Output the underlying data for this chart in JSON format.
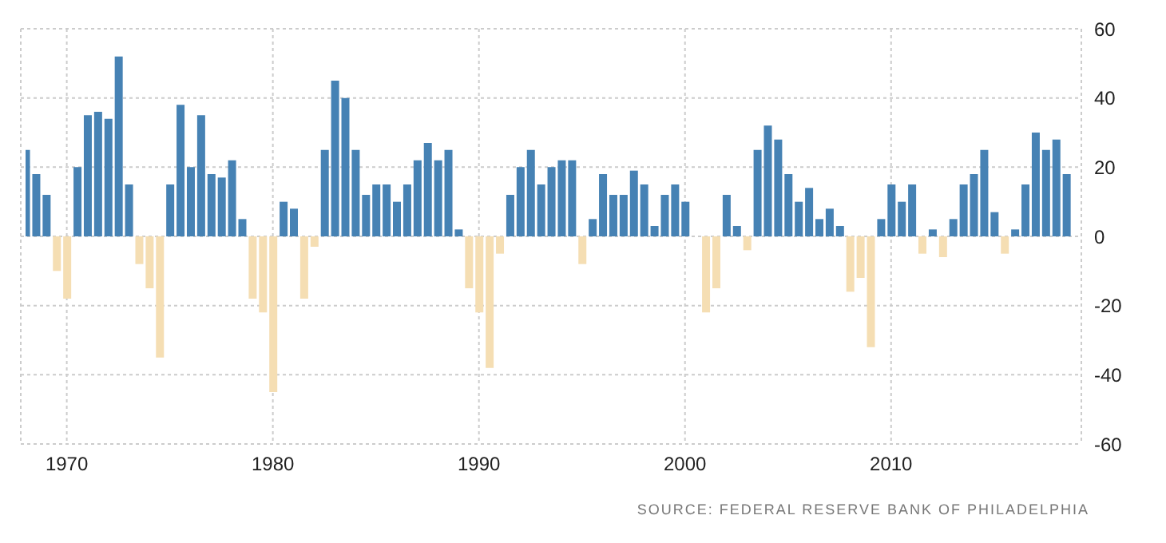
{
  "chart_data": {
    "type": "bar",
    "x": [
      1968,
      1968.5,
      1969,
      1969.5,
      1970,
      1970.5,
      1971,
      1971.5,
      1972,
      1972.5,
      1973,
      1973.5,
      1974,
      1974.5,
      1975,
      1975.5,
      1976,
      1976.5,
      1977,
      1977.5,
      1978,
      1978.5,
      1979,
      1979.5,
      1980,
      1980.5,
      1981,
      1981.5,
      1982,
      1982.5,
      1983,
      1983.5,
      1984,
      1984.5,
      1985,
      1985.5,
      1986,
      1986.5,
      1987,
      1987.5,
      1988,
      1988.5,
      1989,
      1989.5,
      1990,
      1990.5,
      1991,
      1991.5,
      1992,
      1992.5,
      1993,
      1993.5,
      1994,
      1994.5,
      1995,
      1995.5,
      1996,
      1996.5,
      1997,
      1997.5,
      1998,
      1998.5,
      1999,
      1999.5,
      2000,
      2000.5,
      2001,
      2001.5,
      2002,
      2002.5,
      2003,
      2003.5,
      2004,
      2004.5,
      2005,
      2005.5,
      2006,
      2006.5,
      2007,
      2007.5,
      2008,
      2008.5,
      2009,
      2009.5,
      2010,
      2010.5,
      2011,
      2011.5,
      2012,
      2012.5,
      2013,
      2013.5,
      2014,
      2014.5,
      2015,
      2015.5,
      2016,
      2016.5,
      2017,
      2017.5,
      2018,
      2018.5
    ],
    "values": [
      25,
      18,
      12,
      -10,
      -18,
      20,
      35,
      36,
      34,
      52,
      15,
      -8,
      -15,
      -35,
      15,
      38,
      20,
      35,
      18,
      17,
      22,
      5,
      -18,
      -22,
      -45,
      10,
      8,
      -18,
      -3,
      25,
      45,
      40,
      25,
      12,
      15,
      15,
      10,
      15,
      22,
      27,
      22,
      25,
      2,
      -15,
      -22,
      -38,
      -5,
      12,
      20,
      25,
      15,
      20,
      22,
      22,
      -8,
      5,
      18,
      12,
      12,
      19,
      15,
      3,
      12,
      15,
      10,
      0,
      -22,
      -15,
      12,
      3,
      -4,
      25,
      32,
      28,
      18,
      10,
      14,
      5,
      8,
      3,
      -16,
      -12,
      -32,
      5,
      15,
      10,
      15,
      -5,
      2,
      -6,
      5,
      15,
      18,
      25,
      7,
      -5,
      2,
      15,
      30,
      25,
      28,
      18
    ],
    "colors": [
      "#4682b4",
      "#4682b4",
      "#4682b4",
      "#f5deb3",
      "#f5deb3",
      "#4682b4",
      "#4682b4",
      "#4682b4",
      "#4682b4",
      "#4682b4",
      "#4682b4",
      "#f5deb3",
      "#f5deb3",
      "#f5deb3",
      "#4682b4",
      "#4682b4",
      "#4682b4",
      "#4682b4",
      "#4682b4",
      "#4682b4",
      "#4682b4",
      "#4682b4",
      "#f5deb3",
      "#f5deb3",
      "#f5deb3",
      "#4682b4",
      "#4682b4",
      "#f5deb3",
      "#f5deb3",
      "#4682b4",
      "#4682b4",
      "#4682b4",
      "#4682b4",
      "#4682b4",
      "#4682b4",
      "#4682b4",
      "#4682b4",
      "#4682b4",
      "#4682b4",
      "#4682b4",
      "#4682b4",
      "#4682b4",
      "#4682b4",
      "#f5deb3",
      "#f5deb3",
      "#f5deb3",
      "#f5deb3",
      "#4682b4",
      "#4682b4",
      "#4682b4",
      "#4682b4",
      "#4682b4",
      "#4682b4",
      "#4682b4",
      "#f5deb3",
      "#4682b4",
      "#4682b4",
      "#4682b4",
      "#4682b4",
      "#4682b4",
      "#4682b4",
      "#4682b4",
      "#4682b4",
      "#4682b4",
      "#4682b4",
      "#4682b4",
      "#f5deb3",
      "#f5deb3",
      "#4682b4",
      "#4682b4",
      "#f5deb3",
      "#4682b4",
      "#4682b4",
      "#4682b4",
      "#4682b4",
      "#4682b4",
      "#4682b4",
      "#4682b4",
      "#4682b4",
      "#4682b4",
      "#f5deb3",
      "#f5deb3",
      "#f5deb3",
      "#4682b4",
      "#4682b4",
      "#4682b4",
      "#4682b4",
      "#f5deb3",
      "#4682b4",
      "#f5deb3",
      "#4682b4",
      "#4682b4",
      "#4682b4",
      "#4682b4",
      "#4682b4",
      "#f5deb3",
      "#4682b4",
      "#4682b4",
      "#4682b4",
      "#4682b4",
      "#4682b4",
      "#4682b4"
    ],
    "xlim": [
      1968,
      2019
    ],
    "xticks": [
      1970,
      1980,
      1990,
      2000,
      2010
    ],
    "ylim": [
      -60,
      60
    ],
    "yticks": [
      -60,
      -40,
      -20,
      0,
      20,
      40,
      60
    ],
    "grid": true,
    "annotations": [
      "SOURCE: FEDERAL RESERVE BANK OF PHILADELPHIA"
    ]
  }
}
